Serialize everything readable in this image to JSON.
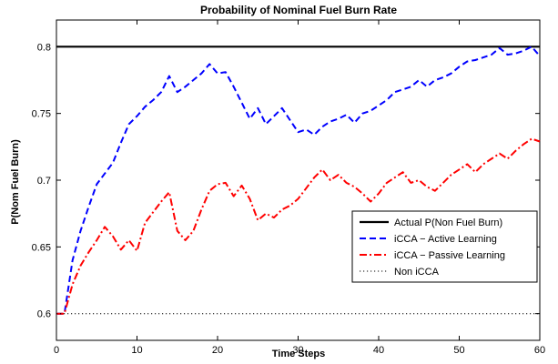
{
  "chart_data": {
    "type": "line",
    "title": "Probability of Nominal Fuel Burn Rate",
    "xlabel": "Time Steps",
    "ylabel": "P(Nom Fuel Burn)",
    "xlim": [
      0,
      60
    ],
    "ylim": [
      0.58,
      0.82
    ],
    "xticks": [
      0,
      10,
      20,
      30,
      40,
      50,
      60
    ],
    "yticks": [
      0.6,
      0.65,
      0.7,
      0.75,
      0.8
    ],
    "ytick_labels": [
      "0.6",
      "0.65",
      "0.7",
      "0.75",
      "0.8"
    ],
    "grid": false,
    "legend_position": "lower-right",
    "series": [
      {
        "name": "Actual P(Non Fuel Burn)",
        "color": "#000000",
        "style": "solid",
        "x": [
          0,
          60
        ],
        "y": [
          0.8,
          0.8
        ]
      },
      {
        "name": "iCCA − Active Learning",
        "color": "#0000ff",
        "style": "dashed",
        "x": [
          0,
          1,
          2,
          3,
          4,
          5,
          6,
          7,
          8,
          9,
          10,
          11,
          12,
          13,
          14,
          15,
          16,
          17,
          18,
          19,
          20,
          21,
          22,
          23,
          24,
          25,
          26,
          27,
          28,
          29,
          30,
          31,
          32,
          33,
          34,
          35,
          36,
          37,
          38,
          39,
          40,
          41,
          42,
          43,
          44,
          45,
          46,
          47,
          48,
          49,
          50,
          51,
          52,
          53,
          54,
          55,
          56,
          57,
          58,
          59,
          60
        ],
        "y": [
          0.6,
          0.6,
          0.64,
          0.662,
          0.68,
          0.697,
          0.705,
          0.713,
          0.728,
          0.742,
          0.748,
          0.755,
          0.76,
          0.766,
          0.778,
          0.766,
          0.77,
          0.775,
          0.78,
          0.787,
          0.78,
          0.781,
          0.77,
          0.758,
          0.746,
          0.754,
          0.742,
          0.748,
          0.754,
          0.745,
          0.736,
          0.738,
          0.734,
          0.74,
          0.744,
          0.746,
          0.749,
          0.743,
          0.75,
          0.752,
          0.756,
          0.76,
          0.766,
          0.768,
          0.77,
          0.775,
          0.77,
          0.775,
          0.777,
          0.78,
          0.785,
          0.789,
          0.79,
          0.792,
          0.794,
          0.799,
          0.794,
          0.795,
          0.797,
          0.8,
          0.793
        ]
      },
      {
        "name": "iCCA − Passive Learning",
        "color": "#ff0000",
        "style": "dashdot",
        "x": [
          0,
          1,
          2,
          3,
          4,
          5,
          6,
          7,
          8,
          9,
          10,
          11,
          12,
          13,
          14,
          15,
          16,
          17,
          18,
          19,
          20,
          21,
          22,
          23,
          24,
          25,
          26,
          27,
          28,
          29,
          30,
          31,
          32,
          33,
          34,
          35,
          36,
          37,
          38,
          39,
          40,
          41,
          42,
          43,
          44,
          45,
          46,
          47,
          48,
          49,
          50,
          51,
          52,
          53,
          54,
          55,
          56,
          57,
          58,
          59,
          60
        ],
        "y": [
          0.6,
          0.6,
          0.622,
          0.636,
          0.646,
          0.655,
          0.665,
          0.658,
          0.648,
          0.655,
          0.647,
          0.668,
          0.676,
          0.684,
          0.691,
          0.662,
          0.655,
          0.662,
          0.678,
          0.692,
          0.697,
          0.698,
          0.688,
          0.696,
          0.686,
          0.67,
          0.675,
          0.672,
          0.678,
          0.681,
          0.686,
          0.694,
          0.702,
          0.708,
          0.7,
          0.704,
          0.698,
          0.695,
          0.69,
          0.684,
          0.69,
          0.698,
          0.702,
          0.706,
          0.698,
          0.7,
          0.695,
          0.692,
          0.698,
          0.704,
          0.708,
          0.712,
          0.706,
          0.712,
          0.716,
          0.72,
          0.716,
          0.722,
          0.727,
          0.731,
          0.729
        ]
      },
      {
        "name": "Non iCCA",
        "color": "#000000",
        "style": "dotted",
        "x": [
          0,
          60
        ],
        "y": [
          0.6,
          0.6
        ]
      }
    ]
  }
}
